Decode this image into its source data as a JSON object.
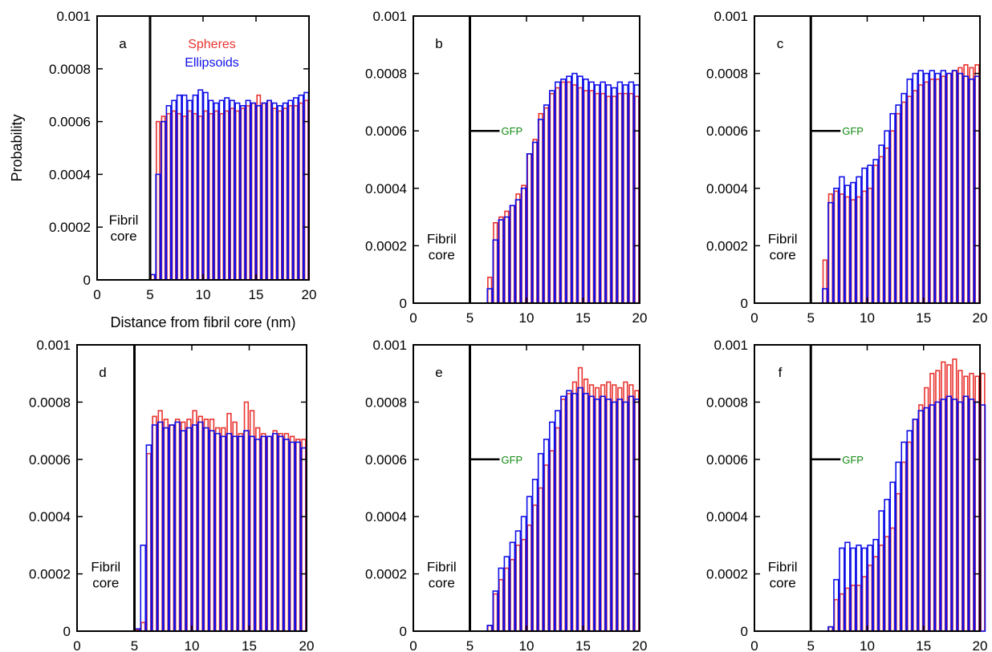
{
  "figure": {
    "legend": [
      {
        "label": "Spheres",
        "color": "#e8332f"
      },
      {
        "label": "Ellipsoids",
        "color": "#1010e8"
      }
    ],
    "ylabel": "Probability",
    "xlabel": "Distance from fibril core (nm)",
    "core_label": [
      "Fibril",
      "core"
    ],
    "gfp_label": "GFP",
    "gfp_color": "#138a13",
    "core_boundary_x": 5
  },
  "chart_data": [
    {
      "type": "bar",
      "panel": "a",
      "xlim": [
        0,
        20
      ],
      "ylim": [
        0,
        0.001
      ],
      "xticks": [
        "0",
        "5",
        "10",
        "15",
        "20"
      ],
      "yticks": [
        "0",
        "0.0002",
        "0.0004",
        "0.0006",
        "0.0008",
        "0.001"
      ],
      "bin_width": 0.5,
      "bin_start": 5.0,
      "gfp_marker": false,
      "series": [
        {
          "name": "Spheres",
          "values": [
            2e-05,
            0.0006,
            0.00062,
            0.00063,
            0.00064,
            0.00063,
            0.00062,
            0.00064,
            0.00063,
            0.00062,
            0.00064,
            0.00063,
            0.00064,
            0.00063,
            0.00064,
            0.00065,
            0.00064,
            0.00065,
            0.00066,
            0.00067,
            0.0007,
            0.00067,
            0.00068,
            0.00065,
            0.00064,
            0.00065,
            0.00066,
            0.00066,
            0.00067,
            0.00068
          ]
        },
        {
          "name": "Ellipsoids",
          "values": [
            2e-05,
            0.0004,
            0.0006,
            0.00066,
            0.00068,
            0.0007,
            0.0007,
            0.00068,
            0.0007,
            0.00072,
            0.00071,
            0.00068,
            0.00067,
            0.00068,
            0.00069,
            0.00068,
            0.00067,
            0.00066,
            0.00068,
            0.00067,
            0.00066,
            0.00067,
            0.00068,
            0.00067,
            0.00066,
            0.00067,
            0.00068,
            0.00069,
            0.0007,
            0.00071
          ]
        }
      ]
    },
    {
      "type": "bar",
      "panel": "b",
      "xlim": [
        0,
        20
      ],
      "ylim": [
        0,
        0.001
      ],
      "xticks": [
        "0",
        "5",
        "10",
        "15",
        "20"
      ],
      "yticks": [
        "0",
        "0.0002",
        "0.0004",
        "0.0006",
        "0.0008",
        "0.001"
      ],
      "bin_width": 0.5,
      "bin_start": 6.5,
      "gfp_marker": true,
      "series": [
        {
          "name": "Spheres",
          "values": [
            9e-05,
            0.00028,
            0.0003,
            0.00032,
            0.00034,
            0.00038,
            0.00041,
            0.00052,
            0.00057,
            0.00066,
            0.00068,
            0.00073,
            0.00075,
            0.00077,
            0.00077,
            0.00076,
            0.00075,
            0.00074,
            0.00074,
            0.00073,
            0.00073,
            0.00072,
            0.00072,
            0.00073,
            0.00073,
            0.00073,
            0.00072
          ]
        },
        {
          "name": "Ellipsoids",
          "values": [
            5e-05,
            0.00022,
            0.00029,
            0.0003,
            0.00034,
            0.00036,
            0.0004,
            0.00052,
            0.00056,
            0.00064,
            0.00069,
            0.00074,
            0.00077,
            0.00078,
            0.00079,
            0.0008,
            0.00079,
            0.00078,
            0.00077,
            0.00076,
            0.00077,
            0.00076,
            0.00075,
            0.00077,
            0.00076,
            0.00077,
            0.00076
          ]
        }
      ]
    },
    {
      "type": "bar",
      "panel": "c",
      "xlim": [
        0,
        20
      ],
      "ylim": [
        0,
        0.001
      ],
      "xticks": [
        "0",
        "5",
        "10",
        "15",
        "20"
      ],
      "yticks": [
        "0",
        "0.0002",
        "0.0004",
        "0.0006",
        "0.0008",
        "0.001"
      ],
      "bin_width": 0.5,
      "bin_start": 6.0,
      "gfp_marker": true,
      "series": [
        {
          "name": "Spheres",
          "values": [
            0.00015,
            0.00038,
            0.00039,
            0.00038,
            0.00037,
            0.00036,
            0.00037,
            0.00039,
            0.0004,
            0.00048,
            0.00051,
            0.00054,
            0.0006,
            0.00066,
            0.0007,
            0.00072,
            0.00074,
            0.00076,
            0.00077,
            0.00078,
            0.00078,
            0.00079,
            0.0008,
            0.00081,
            0.00082,
            0.00083,
            0.00082,
            0.00083
          ]
        },
        {
          "name": "Ellipsoids",
          "values": [
            5e-05,
            0.00035,
            0.0004,
            0.00044,
            0.00041,
            0.00042,
            0.00044,
            0.00047,
            0.00048,
            0.0005,
            0.00055,
            0.0006,
            0.00066,
            0.00069,
            0.00073,
            0.00078,
            0.0008,
            0.00081,
            0.0008,
            0.00081,
            0.0008,
            0.00081,
            0.0008,
            0.00081,
            0.0008,
            0.00079,
            0.00078,
            0.00079
          ]
        }
      ]
    },
    {
      "type": "bar",
      "panel": "d",
      "xlim": [
        0,
        20
      ],
      "ylim": [
        0,
        0.001
      ],
      "xticks": [
        "0",
        "5",
        "10",
        "15",
        "20"
      ],
      "yticks": [
        "0",
        "0.0002",
        "0.0004",
        "0.0006",
        "0.0008",
        "0.001"
      ],
      "bin_width": 0.5,
      "bin_start": 5.0,
      "gfp_marker": false,
      "series": [
        {
          "name": "Spheres",
          "values": [
            5e-06,
            3e-05,
            0.00062,
            0.00075,
            0.00077,
            0.00074,
            0.00072,
            0.00074,
            0.00073,
            0.00074,
            0.00077,
            0.00075,
            0.00074,
            0.00074,
            0.00071,
            0.00071,
            0.00076,
            0.00073,
            0.00069,
            0.0008,
            0.00077,
            0.00071,
            0.00069,
            0.00068,
            0.0007,
            0.00069,
            0.00069,
            0.00068,
            0.00067,
            0.00067
          ]
        },
        {
          "name": "Ellipsoids",
          "values": [
            8e-06,
            0.0003,
            0.00065,
            0.00072,
            0.00073,
            0.00071,
            0.00072,
            0.00073,
            0.0007,
            0.00071,
            0.00072,
            0.00073,
            0.00071,
            0.0007,
            0.00069,
            0.00068,
            0.00069,
            0.00068,
            0.00068,
            0.0007,
            0.00068,
            0.00067,
            0.00068,
            0.00068,
            0.00069,
            0.00068,
            0.00067,
            0.00066,
            0.00066,
            0.00064
          ]
        }
      ]
    },
    {
      "type": "bar",
      "panel": "e",
      "xlim": [
        0,
        20
      ],
      "ylim": [
        0,
        0.001
      ],
      "xticks": [
        "0",
        "5",
        "10",
        "15",
        "20"
      ],
      "yticks": [
        "0",
        "0.0002",
        "0.0004",
        "0.0006",
        "0.0008",
        "0.001"
      ],
      "bin_width": 0.5,
      "bin_start": 6.5,
      "gfp_marker": true,
      "series": [
        {
          "name": "Spheres",
          "values": [
            2e-05,
            0.00013,
            0.00018,
            0.00022,
            0.00025,
            0.0003,
            0.00032,
            0.00037,
            0.00044,
            0.0005,
            0.00058,
            0.00063,
            0.00071,
            0.00081,
            0.00083,
            0.00087,
            0.00092,
            0.00088,
            0.00086,
            0.00085,
            0.00086,
            0.00087,
            0.00086,
            0.00085,
            0.00087,
            0.00086,
            0.00084
          ]
        },
        {
          "name": "Ellipsoids",
          "values": [
            2e-05,
            0.00014,
            0.00022,
            0.00026,
            0.00031,
            0.00035,
            0.0004,
            0.00047,
            0.00053,
            0.00062,
            0.00067,
            0.00073,
            0.00077,
            0.00082,
            0.00084,
            0.00083,
            0.00085,
            0.00083,
            0.00082,
            0.00081,
            0.00082,
            0.00081,
            0.0008,
            0.00081,
            0.0008,
            0.00082,
            0.00081
          ]
        }
      ]
    },
    {
      "type": "bar",
      "panel": "f",
      "xlim": [
        0,
        20
      ],
      "ylim": [
        0,
        0.001
      ],
      "xticks": [
        "0",
        "5",
        "10",
        "15",
        "20"
      ],
      "yticks": [
        "0",
        "0.0002",
        "0.0004",
        "0.0006",
        "0.0008",
        "0.001"
      ],
      "bin_width": 0.5,
      "bin_start": 6.5,
      "gfp_marker": true,
      "series": [
        {
          "name": "Spheres",
          "values": [
            1.5e-05,
            0.00011,
            0.00013,
            0.00015,
            0.00016,
            0.00016,
            0.00019,
            0.00023,
            0.00026,
            0.0003,
            0.00033,
            0.00036,
            0.00048,
            0.00059,
            0.00066,
            0.00074,
            0.00079,
            0.00085,
            0.0009,
            0.00091,
            0.00094,
            0.00093,
            0.00095,
            0.00091,
            0.00089,
            0.0009,
            0.00089,
            0.0009
          ]
        },
        {
          "name": "Ellipsoids",
          "values": [
            1.5e-05,
            0.00018,
            0.00029,
            0.00031,
            0.00029,
            0.0003,
            0.00029,
            0.0003,
            0.00032,
            0.00042,
            0.00046,
            0.00052,
            0.00059,
            0.00066,
            0.0007,
            0.00074,
            0.00077,
            0.00078,
            0.00079,
            0.0008,
            0.00081,
            0.00082,
            0.00081,
            0.0008,
            0.00082,
            0.00081,
            0.0008,
            0.00079
          ]
        }
      ]
    }
  ]
}
